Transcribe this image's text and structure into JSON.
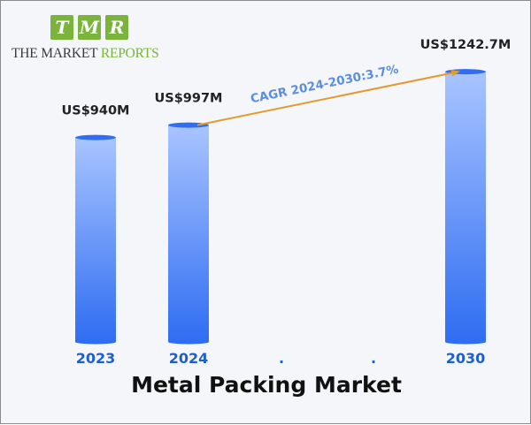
{
  "logo": {
    "letters": [
      "T",
      "M",
      "R"
    ],
    "text_dark": "THE MARKET ",
    "text_green": "REPORTS",
    "colors": {
      "green": "#7ab43c",
      "dark": "#3a3a3a"
    }
  },
  "chart_data": {
    "type": "bar",
    "title": "Metal Packing Market",
    "categories": [
      "2023",
      "2024",
      ".",
      ".",
      "2030"
    ],
    "values": [
      940,
      997,
      null,
      null,
      1242.7
    ],
    "value_labels": [
      "US$940M",
      "US$997M",
      "",
      "",
      "US$1242.7M"
    ],
    "annotation": "CAGR 2024-2030:3.7%",
    "ylim": [
      0,
      1300
    ],
    "grid": false,
    "legend": "none",
    "colors": {
      "bar_top": "#a9c4ff",
      "bar_bottom": "#2f6df2",
      "axis_label": "#1e5fd0",
      "arrow": "#e39b2f",
      "annotation": "#5b8de0"
    }
  }
}
